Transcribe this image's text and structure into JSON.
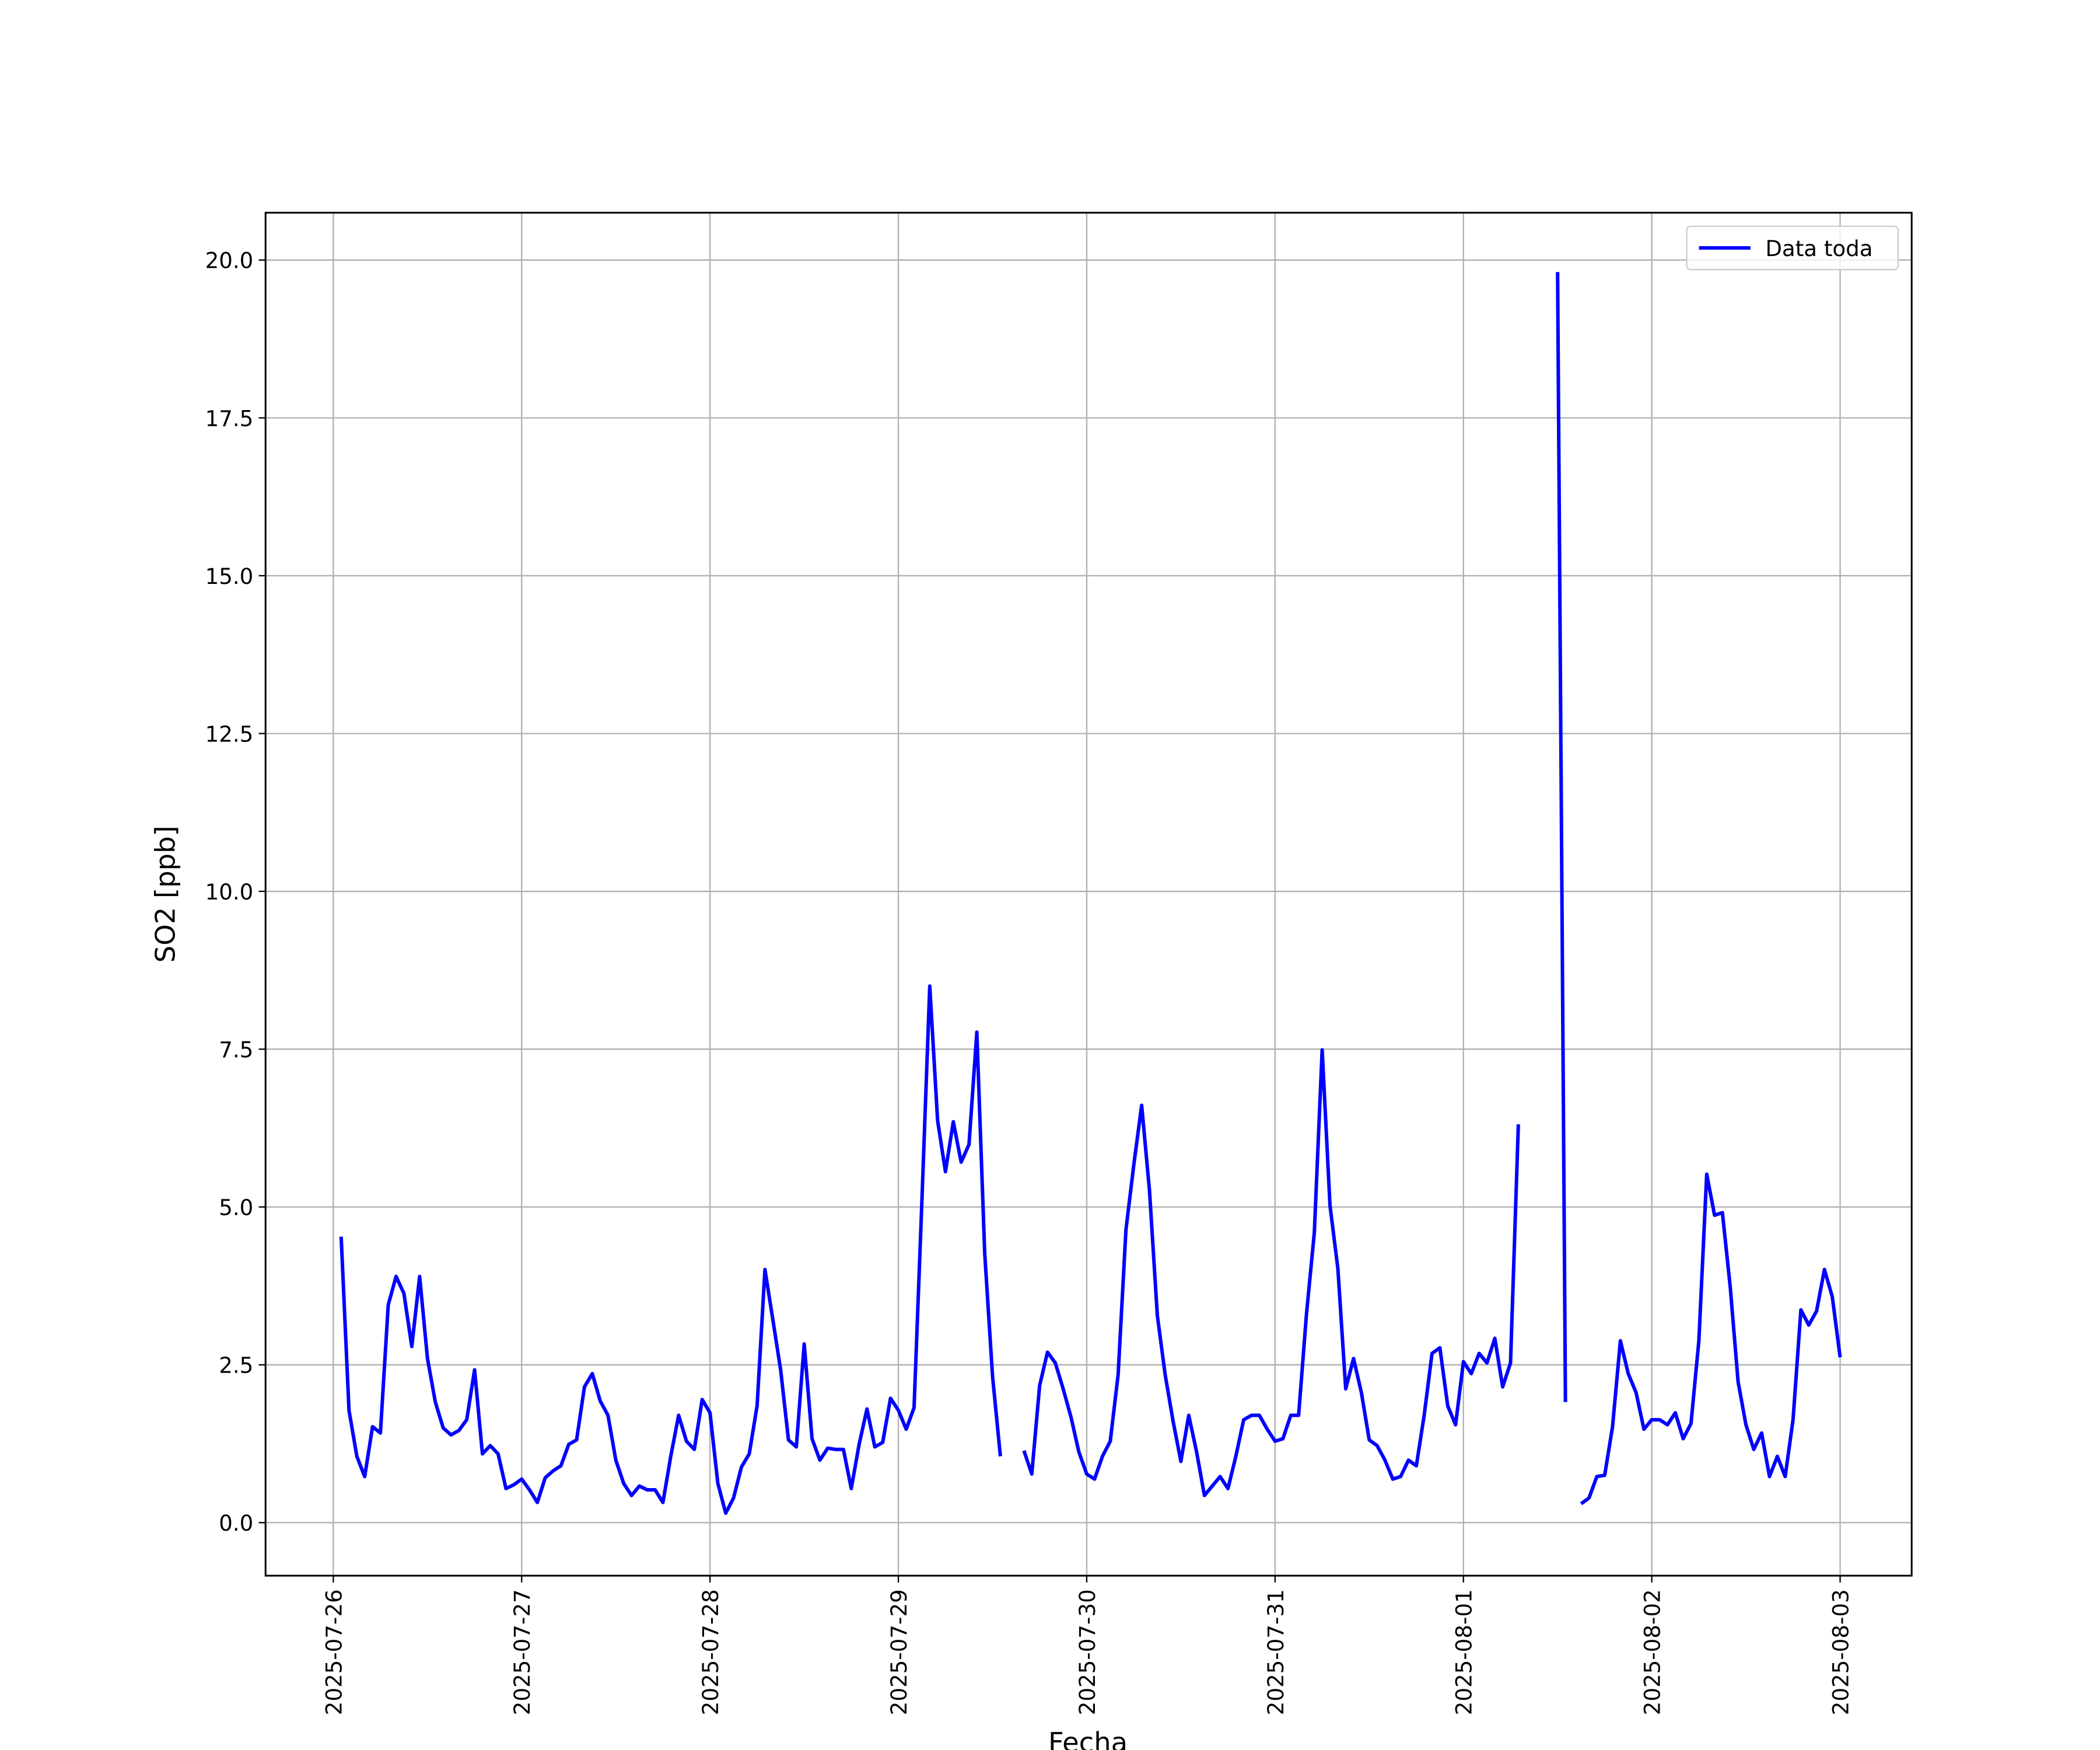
{
  "chart_data": {
    "type": "line",
    "xlabel": "Fecha",
    "ylabel": "SO2 [ppb]",
    "x": [
      "2025-07-26T01:00",
      "2025-07-26T02:00",
      "2025-07-26T03:00",
      "2025-07-26T04:00",
      "2025-07-26T05:00",
      "2025-07-26T06:00",
      "2025-07-26T07:00",
      "2025-07-26T08:00",
      "2025-07-26T09:00",
      "2025-07-26T10:00",
      "2025-07-26T11:00",
      "2025-07-26T12:00",
      "2025-07-26T13:00",
      "2025-07-26T14:00",
      "2025-07-26T15:00",
      "2025-07-26T16:00",
      "2025-07-26T17:00",
      "2025-07-26T18:00",
      "2025-07-26T19:00",
      "2025-07-26T20:00",
      "2025-07-26T21:00",
      "2025-07-26T22:00",
      "2025-07-26T23:00",
      "2025-07-27T00:00",
      "2025-07-27T01:00",
      "2025-07-27T02:00",
      "2025-07-27T03:00",
      "2025-07-27T04:00",
      "2025-07-27T05:00",
      "2025-07-27T06:00",
      "2025-07-27T07:00",
      "2025-07-27T08:00",
      "2025-07-27T09:00",
      "2025-07-27T10:00",
      "2025-07-27T11:00",
      "2025-07-27T12:00",
      "2025-07-27T13:00",
      "2025-07-27T14:00",
      "2025-07-27T15:00",
      "2025-07-27T16:00",
      "2025-07-27T17:00",
      "2025-07-27T18:00",
      "2025-07-27T19:00",
      "2025-07-27T20:00",
      "2025-07-27T21:00",
      "2025-07-27T22:00",
      "2025-07-27T23:00",
      "2025-07-28T00:00",
      "2025-07-28T01:00",
      "2025-07-28T02:00",
      "2025-07-28T03:00",
      "2025-07-28T04:00",
      "2025-07-28T05:00",
      "2025-07-28T06:00",
      "2025-07-28T07:00",
      "2025-07-28T08:00",
      "2025-07-28T09:00",
      "2025-07-28T10:00",
      "2025-07-28T11:00",
      "2025-07-28T12:00",
      "2025-07-28T13:00",
      "2025-07-28T14:00",
      "2025-07-28T15:00",
      "2025-07-28T16:00",
      "2025-07-28T17:00",
      "2025-07-28T18:00",
      "2025-07-28T19:00",
      "2025-07-28T20:00",
      "2025-07-28T21:00",
      "2025-07-28T22:00",
      "2025-07-28T23:00",
      "2025-07-29T00:00",
      "2025-07-29T01:00",
      "2025-07-29T02:00",
      "2025-07-29T03:00",
      "2025-07-29T04:00",
      "2025-07-29T05:00",
      "2025-07-29T06:00",
      "2025-07-29T07:00",
      "2025-07-29T08:00",
      "2025-07-29T09:00",
      "2025-07-29T10:00",
      "2025-07-29T11:00",
      "2025-07-29T12:00",
      "2025-07-29T13:00",
      "2025-07-29T14:00",
      "2025-07-29T15:00",
      "2025-07-29T16:00",
      "2025-07-29T17:00",
      "2025-07-29T18:00",
      "2025-07-29T19:00",
      "2025-07-29T20:00",
      "2025-07-29T21:00",
      "2025-07-29T22:00",
      "2025-07-29T23:00",
      "2025-07-30T00:00",
      "2025-07-30T01:00",
      "2025-07-30T02:00",
      "2025-07-30T03:00",
      "2025-07-30T04:00",
      "2025-07-30T05:00",
      "2025-07-30T06:00",
      "2025-07-30T07:00",
      "2025-07-30T08:00",
      "2025-07-30T09:00",
      "2025-07-30T10:00",
      "2025-07-30T11:00",
      "2025-07-30T12:00",
      "2025-07-30T13:00",
      "2025-07-30T14:00",
      "2025-07-30T15:00",
      "2025-07-30T16:00",
      "2025-07-30T17:00",
      "2025-07-30T18:00",
      "2025-07-30T19:00",
      "2025-07-30T20:00",
      "2025-07-30T21:00",
      "2025-07-30T22:00",
      "2025-07-30T23:00",
      "2025-07-31T00:00",
      "2025-07-31T01:00",
      "2025-07-31T02:00",
      "2025-07-31T03:00",
      "2025-07-31T04:00",
      "2025-07-31T05:00",
      "2025-07-31T06:00",
      "2025-07-31T07:00",
      "2025-07-31T08:00",
      "2025-07-31T09:00",
      "2025-07-31T10:00",
      "2025-07-31T11:00",
      "2025-07-31T12:00",
      "2025-07-31T13:00",
      "2025-07-31T14:00",
      "2025-07-31T15:00",
      "2025-07-31T16:00",
      "2025-07-31T17:00",
      "2025-07-31T18:00",
      "2025-07-31T19:00",
      "2025-07-31T20:00",
      "2025-07-31T21:00",
      "2025-07-31T22:00",
      "2025-07-31T23:00",
      "2025-08-01T00:00",
      "2025-08-01T01:00",
      "2025-08-01T02:00",
      "2025-08-01T03:00",
      "2025-08-01T04:00",
      "2025-08-01T05:00",
      "2025-08-01T06:00",
      "2025-08-01T07:00",
      "2025-08-01T08:00",
      "2025-08-01T09:00",
      "2025-08-01T10:00",
      "2025-08-01T11:00",
      "2025-08-01T12:00",
      "2025-08-01T13:00",
      "2025-08-01T14:00",
      "2025-08-01T15:00",
      "2025-08-01T16:00",
      "2025-08-01T17:00",
      "2025-08-01T18:00",
      "2025-08-01T19:00",
      "2025-08-01T20:00",
      "2025-08-01T21:00",
      "2025-08-01T22:00",
      "2025-08-01T23:00",
      "2025-08-02T00:00",
      "2025-08-02T01:00",
      "2025-08-02T02:00",
      "2025-08-02T03:00",
      "2025-08-02T04:00",
      "2025-08-02T05:00",
      "2025-08-02T06:00",
      "2025-08-02T07:00",
      "2025-08-02T08:00",
      "2025-08-02T09:00",
      "2025-08-02T10:00",
      "2025-08-02T11:00",
      "2025-08-02T12:00",
      "2025-08-02T13:00",
      "2025-08-02T14:00",
      "2025-08-02T15:00",
      "2025-08-02T16:00",
      "2025-08-02T17:00",
      "2025-08-02T18:00",
      "2025-08-02T19:00",
      "2025-08-02T20:00",
      "2025-08-02T21:00",
      "2025-08-02T22:00",
      "2025-08-02T23:00",
      "2025-08-03T00:00"
    ],
    "series": [
      {
        "name": "Data toda",
        "color": "#0000ff",
        "values": [
          4.53,
          1.78,
          1.05,
          0.73,
          1.52,
          1.42,
          3.45,
          3.9,
          3.63,
          2.79,
          3.9,
          2.6,
          1.91,
          1.5,
          1.39,
          1.46,
          1.63,
          2.42,
          1.09,
          1.22,
          1.09,
          0.54,
          0.6,
          0.69,
          0.52,
          0.32,
          0.71,
          0.82,
          0.9,
          1.24,
          1.31,
          2.15,
          2.36,
          1.93,
          1.7,
          0.99,
          0.62,
          0.43,
          0.58,
          0.52,
          0.52,
          0.32,
          1.05,
          1.7,
          1.29,
          1.16,
          1.95,
          1.74,
          0.62,
          0.15,
          0.39,
          0.88,
          1.09,
          1.85,
          4.01,
          3.22,
          2.42,
          1.31,
          1.2,
          2.83,
          1.33,
          0.99,
          1.18,
          1.16,
          1.16,
          0.54,
          1.24,
          1.8,
          1.2,
          1.27,
          1.97,
          1.78,
          1.48,
          1.82,
          5.1,
          8.5,
          6.37,
          5.56,
          6.35,
          5.71,
          5.99,
          7.77,
          4.27,
          2.32,
          1.05,
          null,
          null,
          1.14,
          0.77,
          2.17,
          2.7,
          2.53,
          2.12,
          1.67,
          1.12,
          0.77,
          0.69,
          1.05,
          1.29,
          2.34,
          4.64,
          5.67,
          6.61,
          5.26,
          3.28,
          2.34,
          1.61,
          0.97,
          1.7,
          1.12,
          0.43,
          0.58,
          0.73,
          0.54,
          1.05,
          1.63,
          1.7,
          1.7,
          1.48,
          1.29,
          1.33,
          1.7,
          1.7,
          3.3,
          4.59,
          7.49,
          5.02,
          4.03,
          2.12,
          2.6,
          2.06,
          1.31,
          1.22,
          0.99,
          0.69,
          0.73,
          0.99,
          0.9,
          1.7,
          2.68,
          2.77,
          1.85,
          1.55,
          2.55,
          2.36,
          2.68,
          2.53,
          2.92,
          2.15,
          2.53,
          6.31,
          null,
          null,
          null,
          null,
          19.81,
          1.91,
          null,
          0.3,
          0.39,
          0.73,
          0.75,
          1.52,
          2.88,
          2.36,
          2.06,
          1.48,
          1.63,
          1.63,
          1.55,
          1.74,
          1.33,
          1.57,
          2.88,
          5.52,
          4.87,
          4.91,
          3.73,
          2.23,
          1.55,
          1.16,
          1.42,
          0.73,
          1.05,
          0.73,
          1.63,
          3.37,
          3.13,
          3.35,
          4.01,
          3.58,
          2.62
        ]
      }
    ],
    "xlim": [
      "2025-07-25T15:22",
      "2025-08-03T09:07"
    ],
    "xticks": [
      "2025-07-26",
      "2025-07-27",
      "2025-07-28",
      "2025-07-29",
      "2025-07-30",
      "2025-07-31",
      "2025-08-01",
      "2025-08-02",
      "2025-08-03"
    ],
    "ylim": [
      -0.84,
      20.75
    ],
    "yticks": [
      {
        "value": 0,
        "label": "0.0"
      },
      2.5,
      {
        "value": 5,
        "label": "5.0"
      },
      7.5,
      {
        "value": 10,
        "label": "10.0"
      },
      12.5,
      {
        "value": 15,
        "label": "15.0"
      },
      17.5,
      {
        "value": 20,
        "label": "20.0"
      }
    ],
    "grid": true,
    "legend": "upper right"
  }
}
